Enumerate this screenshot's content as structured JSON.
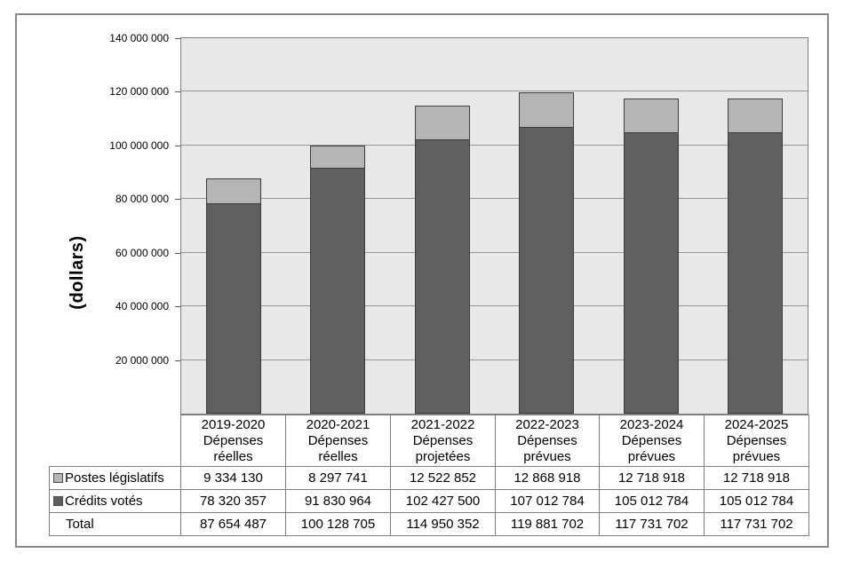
{
  "chart_data": {
    "type": "bar",
    "stacked": true,
    "title": "",
    "ylabel": "(dollars)",
    "ylim": [
      0,
      140000000
    ],
    "ytick_values": [
      20000000,
      40000000,
      60000000,
      80000000,
      100000000,
      120000000,
      140000000
    ],
    "ytick_labels": [
      "20 000 000",
      "40 000 000",
      "60 000 000",
      "80 000 000",
      "100 000 000",
      "120 000 000",
      "140 000 000"
    ],
    "grid": true,
    "legend_position": "table-left",
    "categories": [
      "2019-2020\nDépenses\nréelles",
      "2020-2021\nDépenses\nréelles",
      "2021-2022\nDépenses\nprojetées",
      "2022-2023\nDépenses\nprévues",
      "2023-2024\nDépenses\nprévues",
      "2024-2025\nDépenses\nprévues"
    ],
    "series": [
      {
        "name": "Postes législatifs",
        "color": "#b5b5b5",
        "stack_index": 1,
        "values": [
          9334130,
          8297741,
          12522852,
          12868918,
          12718918,
          12718918
        ]
      },
      {
        "name": "Crédits votés",
        "color": "#5f5f5f",
        "stack_index": 0,
        "values": [
          78320357,
          91830964,
          102427500,
          107012784,
          105012784,
          105012784
        ]
      }
    ],
    "total_row": {
      "label": "Total",
      "values": [
        87654487,
        100128705,
        114950352,
        119881702,
        117731702,
        117731702
      ]
    }
  },
  "colors": {
    "plot_bg": "#e8e8e8",
    "gridline": "#969696",
    "plot_border": "#7f7f7f",
    "table_border": "#7f7f7f",
    "frame_border": "#888888",
    "bar_border": "#3c3c3c",
    "swatch_border": "#4a4a4a",
    "text": "#000000"
  }
}
